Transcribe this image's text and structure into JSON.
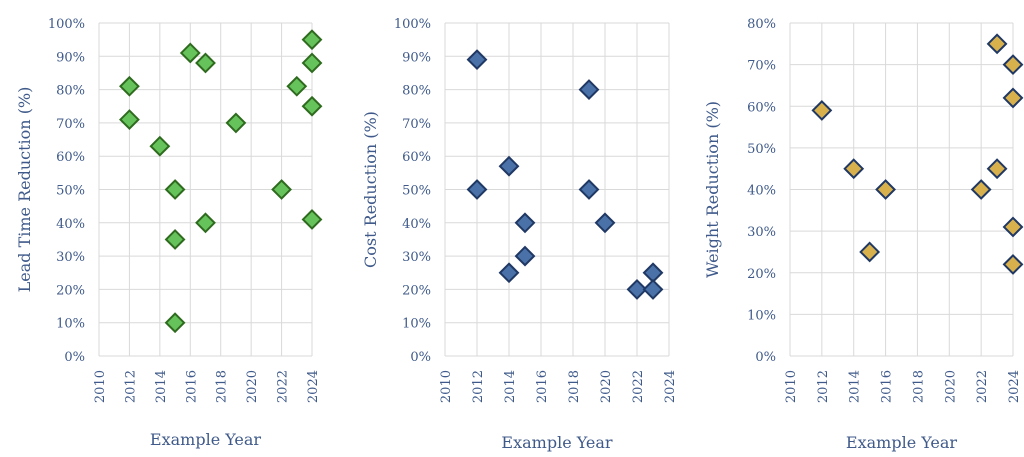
{
  "chart_data": [
    {
      "type": "scatter",
      "xlabel": "Example Year",
      "ylabel": "Lead Time Reduction (%)",
      "xlim": [
        2010,
        2024
      ],
      "xticks": [
        "2010",
        "2012",
        "2014",
        "2016",
        "2018",
        "2020",
        "2022",
        "2024"
      ],
      "ylim": [
        0,
        100
      ],
      "yticks": [
        "0%",
        "10%",
        "20%",
        "30%",
        "40%",
        "50%",
        "60%",
        "70%",
        "80%",
        "90%",
        "100%"
      ],
      "grid": true,
      "marker": "diamond",
      "fill_color": "#66C35B",
      "edge_color": "#2F6B1F",
      "points": [
        {
          "x": 2012,
          "y": 81
        },
        {
          "x": 2012,
          "y": 71
        },
        {
          "x": 2014,
          "y": 63
        },
        {
          "x": 2015,
          "y": 50
        },
        {
          "x": 2015,
          "y": 35
        },
        {
          "x": 2015,
          "y": 10
        },
        {
          "x": 2016,
          "y": 91
        },
        {
          "x": 2017,
          "y": 88
        },
        {
          "x": 2017,
          "y": 40
        },
        {
          "x": 2019,
          "y": 70
        },
        {
          "x": 2022,
          "y": 50
        },
        {
          "x": 2023,
          "y": 81
        },
        {
          "x": 2024,
          "y": 95
        },
        {
          "x": 2024,
          "y": 88
        },
        {
          "x": 2024,
          "y": 75
        },
        {
          "x": 2024,
          "y": 41
        }
      ]
    },
    {
      "type": "scatter",
      "xlabel": "Example Year",
      "ylabel": "Cost Reduction (%)",
      "xlim": [
        2010,
        2024
      ],
      "xticks": [
        "2010",
        "2012",
        "2014",
        "2016",
        "2018",
        "2020",
        "2022",
        "2024"
      ],
      "ylim": [
        0,
        100
      ],
      "yticks": [
        "0%",
        "10%",
        "20%",
        "30%",
        "40%",
        "50%",
        "60%",
        "70%",
        "80%",
        "90%",
        "100%"
      ],
      "grid": true,
      "marker": "diamond",
      "fill_color": "#4A72A8",
      "edge_color": "#203864",
      "points": [
        {
          "x": 2012,
          "y": 89
        },
        {
          "x": 2012,
          "y": 50
        },
        {
          "x": 2014,
          "y": 57
        },
        {
          "x": 2014,
          "y": 25
        },
        {
          "x": 2015,
          "y": 40
        },
        {
          "x": 2015,
          "y": 30
        },
        {
          "x": 2019,
          "y": 80
        },
        {
          "x": 2019,
          "y": 50
        },
        {
          "x": 2020,
          "y": 40
        },
        {
          "x": 2022,
          "y": 20
        },
        {
          "x": 2023,
          "y": 25
        },
        {
          "x": 2023,
          "y": 20
        }
      ]
    },
    {
      "type": "scatter",
      "xlabel": "Example Year",
      "ylabel": "Weight Reduction (%)",
      "xlim": [
        2010,
        2024
      ],
      "xticks": [
        "2010",
        "2012",
        "2014",
        "2016",
        "2018",
        "2020",
        "2022",
        "2024"
      ],
      "ylim": [
        0,
        80
      ],
      "yticks": [
        "0%",
        "10%",
        "20%",
        "30%",
        "40%",
        "50%",
        "60%",
        "70%",
        "80%"
      ],
      "grid": true,
      "marker": "diamond",
      "fill_color": "#D9B14C",
      "edge_color": "#203864",
      "points": [
        {
          "x": 2012,
          "y": 59
        },
        {
          "x": 2014,
          "y": 45
        },
        {
          "x": 2015,
          "y": 25
        },
        {
          "x": 2016,
          "y": 40
        },
        {
          "x": 2022,
          "y": 40
        },
        {
          "x": 2023,
          "y": 75
        },
        {
          "x": 2023,
          "y": 45
        },
        {
          "x": 2024,
          "y": 70
        },
        {
          "x": 2024,
          "y": 62
        },
        {
          "x": 2024,
          "y": 31
        },
        {
          "x": 2024,
          "y": 22
        }
      ]
    }
  ]
}
